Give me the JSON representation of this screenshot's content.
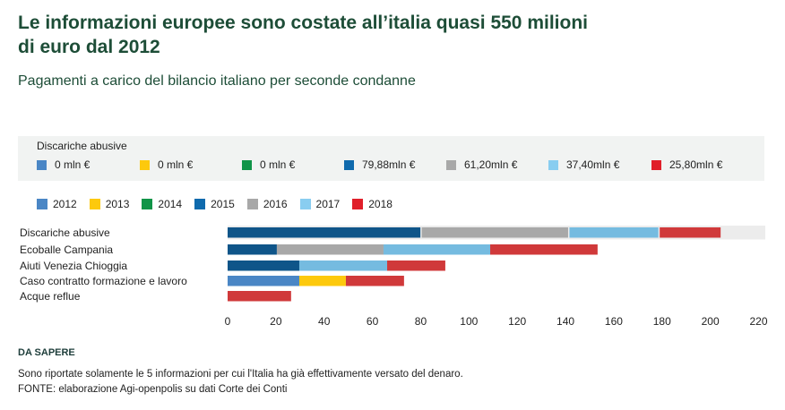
{
  "header": {
    "title": "Le informazioni europee sono costate all’italia quasi 550 milioni di euro dal 2012",
    "subtitle": "Pagamenti a carico del bilancio italiano per seconde condanne"
  },
  "tooltip": {
    "title": "Discariche abusive",
    "items": [
      {
        "year": "2012",
        "label": "0 mln €",
        "color": "#4a86c5"
      },
      {
        "year": "2013",
        "label": "0 mln €",
        "color": "#fdc90d"
      },
      {
        "year": "2014",
        "label": "0 mln €",
        "color": "#109448"
      },
      {
        "year": "2015",
        "label": "79,88mln €",
        "color": "#0f6aad"
      },
      {
        "year": "2016",
        "label": "61,20mln €",
        "color": "#a8a8a8"
      },
      {
        "year": "2017",
        "label": "37,40mln €",
        "color": "#89cdf0"
      },
      {
        "year": "2018",
        "label": "25,80mln €",
        "color": "#e01f2a"
      }
    ]
  },
  "notes": {
    "heading": "DA SAPERE",
    "line1": "Sono riportate solamente le 5 informazioni per cui l'Italia ha già effettivamente versato del denaro.",
    "line2": "FONTE: elaborazione Agi-openpolis su dati Corte dei Conti"
  },
  "chart_data": {
    "type": "bar",
    "orientation": "horizontal",
    "stacked": true,
    "title": "Le informazioni europee sono costate all’italia quasi 550 milioni di euro dal 2012",
    "subtitle": "Pagamenti a carico del bilancio italiano per seconde condanne",
    "xlabel": "",
    "ylabel": "",
    "unit": "mln €",
    "xlim": [
      0,
      220
    ],
    "xticks": [
      0,
      20,
      40,
      60,
      80,
      100,
      120,
      140,
      160,
      180,
      200,
      220
    ],
    "grid": false,
    "legend_position": "top-left",
    "highlighted_category": "Discariche abusive",
    "categories": [
      "Discariche abusive",
      "Ecoballe Campania",
      "Aiuti Venezia Chioggia",
      "Caso contratto formazione e lavoro",
      "Acque reflue"
    ],
    "series": [
      {
        "name": "2012",
        "color": "#4a86c5",
        "values": [
          0,
          0,
          0,
          29.7,
          0
        ]
      },
      {
        "name": "2013",
        "color": "#fdc90d",
        "values": [
          0,
          0,
          0,
          19.3,
          0
        ]
      },
      {
        "name": "2014",
        "color": "#109448",
        "values": [
          0,
          0,
          0,
          0,
          0
        ]
      },
      {
        "name": "2015",
        "color": "#0f5589",
        "values": [
          79.88,
          20.4,
          29.7,
          0,
          0
        ]
      },
      {
        "name": "2016",
        "color": "#a8a8a8",
        "values": [
          61.2,
          44.2,
          0,
          0,
          0
        ]
      },
      {
        "name": "2017",
        "color": "#75bbe0",
        "values": [
          37.4,
          44.2,
          36.4,
          0,
          0
        ]
      },
      {
        "name": "2018",
        "color": "#d0393a",
        "values": [
          25.8,
          44.5,
          24.1,
          24.1,
          26.3
        ]
      }
    ],
    "legend_colors": [
      "#4a86c5",
      "#fdc90d",
      "#109448",
      "#0f6aad",
      "#a8a8a8",
      "#89cdf0",
      "#e01f2a"
    ]
  }
}
